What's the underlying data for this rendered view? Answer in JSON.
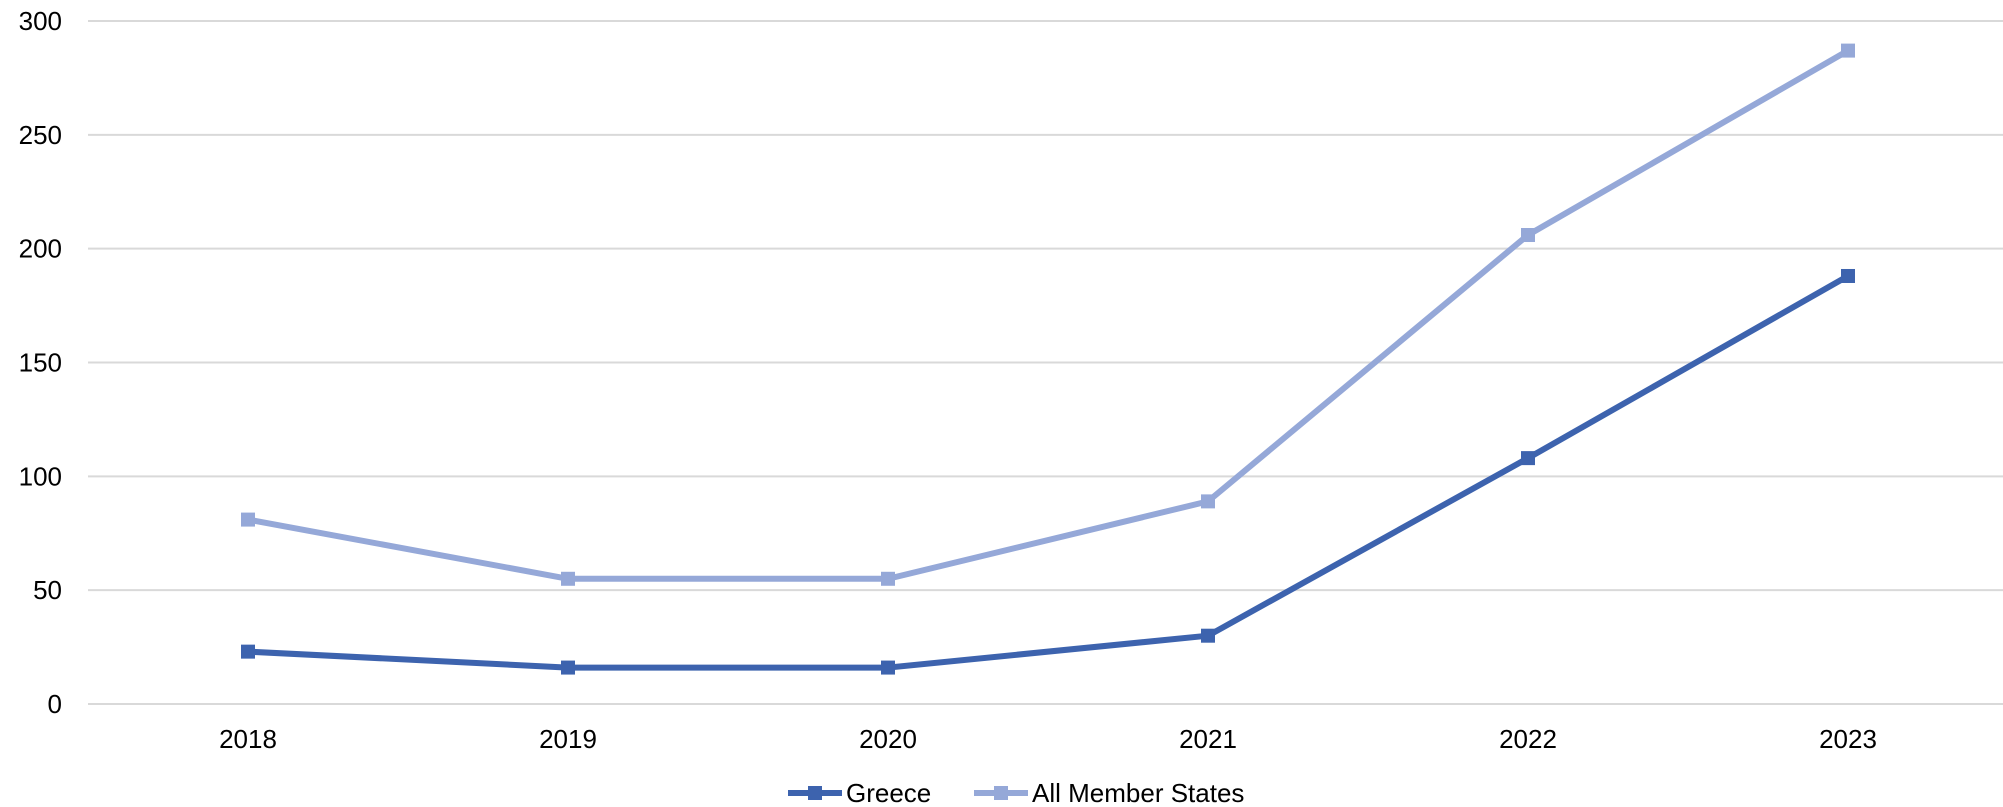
{
  "chart_data": {
    "type": "line",
    "title": "",
    "xlabel": "",
    "ylabel": "",
    "categories": [
      "2018",
      "2019",
      "2020",
      "2021",
      "2022",
      "2023"
    ],
    "ylim": [
      0,
      300
    ],
    "yticks": [
      0,
      50,
      100,
      150,
      200,
      250,
      300
    ],
    "grid": true,
    "legend_position": "bottom",
    "series": [
      {
        "name": "Greece",
        "color": "#3d63ae",
        "marker": "square",
        "values": [
          23,
          16,
          16,
          30,
          108,
          188
        ]
      },
      {
        "name": "All Member States",
        "color": "#95a8d8",
        "marker": "square",
        "values": [
          81,
          55,
          55,
          89,
          206,
          287
        ]
      }
    ]
  }
}
